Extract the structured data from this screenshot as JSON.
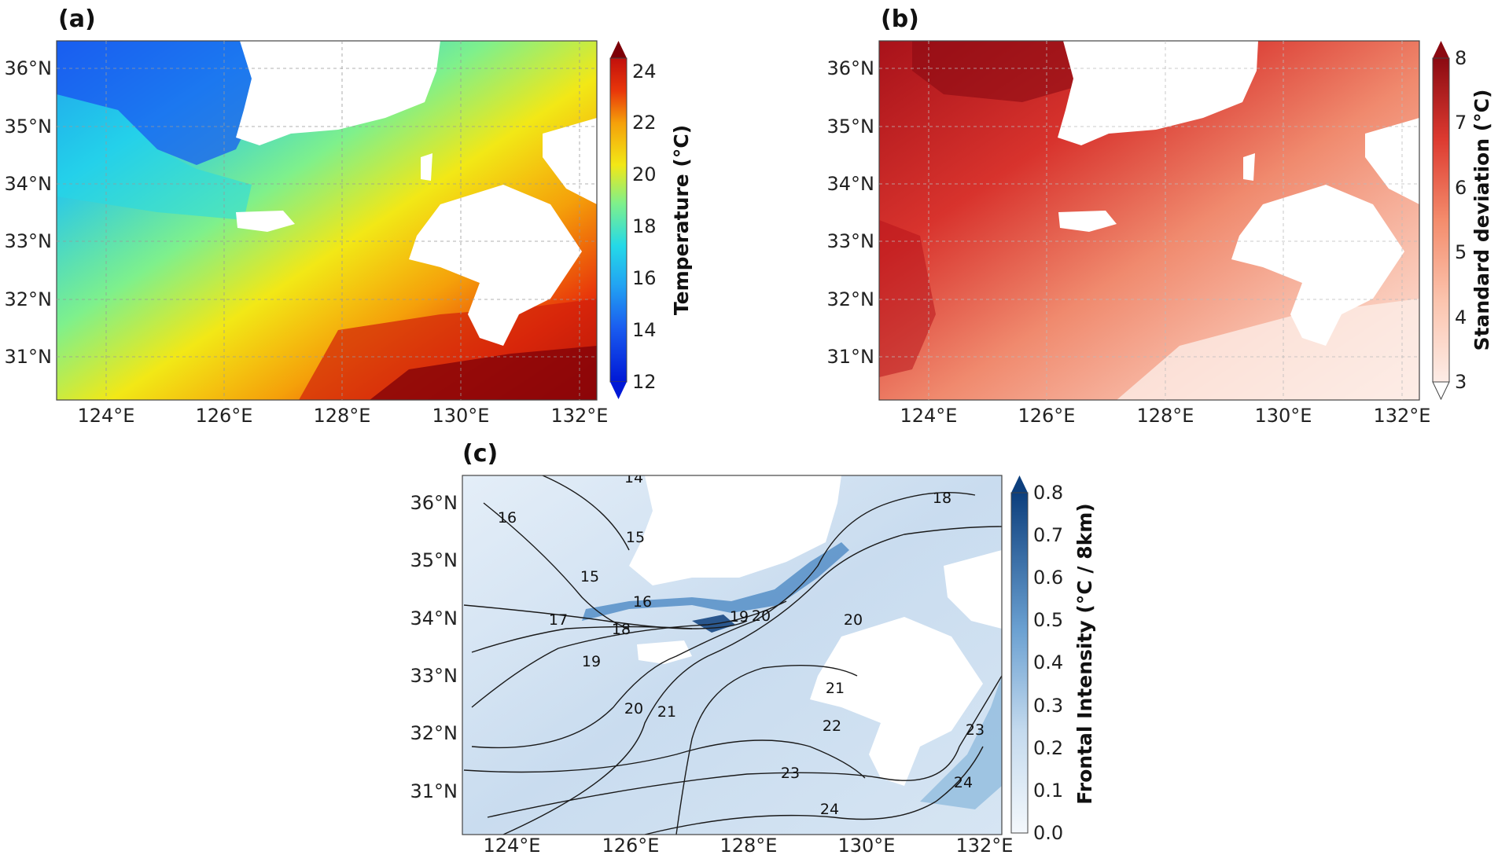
{
  "panels": {
    "a": {
      "label": "(a)",
      "colorbar": {
        "title": "Temperature (°C)",
        "ticks": [
          "24",
          "22",
          "20",
          "18",
          "16",
          "14",
          "12"
        ],
        "min": 12,
        "max": 24
      }
    },
    "b": {
      "label": "(b)",
      "colorbar": {
        "title": "Standard deviation (°C)",
        "ticks": [
          "8",
          "7",
          "6",
          "5",
          "4",
          "3"
        ],
        "min": 3,
        "max": 8
      }
    },
    "c": {
      "label": "(c)",
      "colorbar": {
        "title": "Frontal Intensity (°C / 8km)",
        "ticks": [
          "0.8",
          "0.7",
          "0.6",
          "0.5",
          "0.4",
          "0.3",
          "0.2",
          "0.1",
          "0.0"
        ],
        "min": 0.0,
        "max": 0.8
      },
      "contour_labels": [
        "14",
        "15",
        "15",
        "16",
        "16",
        "17",
        "18",
        "18",
        "19",
        "19",
        "20",
        "20",
        "20",
        "21",
        "21",
        "22",
        "23",
        "23",
        "24",
        "24"
      ]
    }
  },
  "axes": {
    "x_ticks": [
      "124°E",
      "126°E",
      "128°E",
      "130°E",
      "132°E"
    ],
    "y_ticks": [
      "36°N",
      "35°N",
      "34°N",
      "33°N",
      "32°N",
      "31°N"
    ],
    "lon_range": [
      123.2,
      132.2
    ],
    "lat_range": [
      30.3,
      36.5
    ]
  },
  "colors": {
    "land": "#ffffff",
    "temperature_scale": [
      "#0018d6",
      "#1a5ef0",
      "#22a4f2",
      "#24d9e8",
      "#5ef0b0",
      "#b7f542",
      "#f2e816",
      "#f5b40a",
      "#f27a05",
      "#e83a0a",
      "#c2100c",
      "#7d0008"
    ],
    "std_scale": [
      "#fde6df",
      "#fbc9b8",
      "#f7a58e",
      "#f07b62",
      "#e4473a",
      "#c61a1f",
      "#8b0a12"
    ],
    "frontal_scale": [
      "#eef4fb",
      "#dae8f5",
      "#c4daee",
      "#a8c9e5",
      "#88b6dc",
      "#6aa0d1",
      "#4d89c4",
      "#336eb0",
      "#1d5498",
      "#0d3f7d"
    ]
  },
  "chart_data": [
    {
      "type": "heatmap",
      "panel": "(a)",
      "title": "(a)",
      "variable": "Temperature (°C)",
      "xlabel": "",
      "ylabel": "",
      "xlim": [
        123.2,
        132.2
      ],
      "ylim": [
        30.3,
        36.5
      ],
      "x_ticks": [
        124,
        126,
        128,
        130,
        132
      ],
      "y_ticks": [
        31,
        32,
        33,
        34,
        35,
        36
      ],
      "color_range": [
        12,
        24
      ],
      "colorbar_ticks": [
        12,
        14,
        16,
        18,
        20,
        22,
        24
      ],
      "pattern": "cool (~14-16 °C) in northwest Yellow Sea, warm (~24 °C) in southeast East China Sea"
    },
    {
      "type": "heatmap",
      "panel": "(b)",
      "title": "(b)",
      "variable": "Standard deviation (°C)",
      "xlabel": "",
      "ylabel": "",
      "xlim": [
        123.2,
        132.2
      ],
      "ylim": [
        30.3,
        36.5
      ],
      "x_ticks": [
        124,
        126,
        128,
        130,
        132
      ],
      "y_ticks": [
        31,
        32,
        33,
        34,
        35,
        36
      ],
      "color_range": [
        3,
        8
      ],
      "colorbar_ticks": [
        3,
        4,
        5,
        6,
        7,
        8
      ],
      "pattern": "high (~7-8 °C) in northwest, low (~3 °C) in southeast"
    },
    {
      "type": "heatmap",
      "panel": "(c)",
      "title": "(c)",
      "variable": "Frontal Intensity (°C / 8km)",
      "xlabel": "",
      "ylabel": "",
      "xlim": [
        123.2,
        132.2
      ],
      "ylim": [
        30.3,
        36.5
      ],
      "x_ticks": [
        124,
        126,
        128,
        130,
        132
      ],
      "y_ticks": [
        31,
        32,
        33,
        34,
        35,
        36
      ],
      "color_range": [
        0.0,
        0.8
      ],
      "colorbar_ticks": [
        0.0,
        0.1,
        0.2,
        0.3,
        0.4,
        0.5,
        0.6,
        0.7,
        0.8
      ],
      "contour_levels": [
        14,
        15,
        16,
        17,
        18,
        19,
        20,
        21,
        22,
        23,
        24
      ],
      "pattern": "strongest front (~0.8) near 127.5°E, 33.9°N along the Korea Strait"
    }
  ]
}
